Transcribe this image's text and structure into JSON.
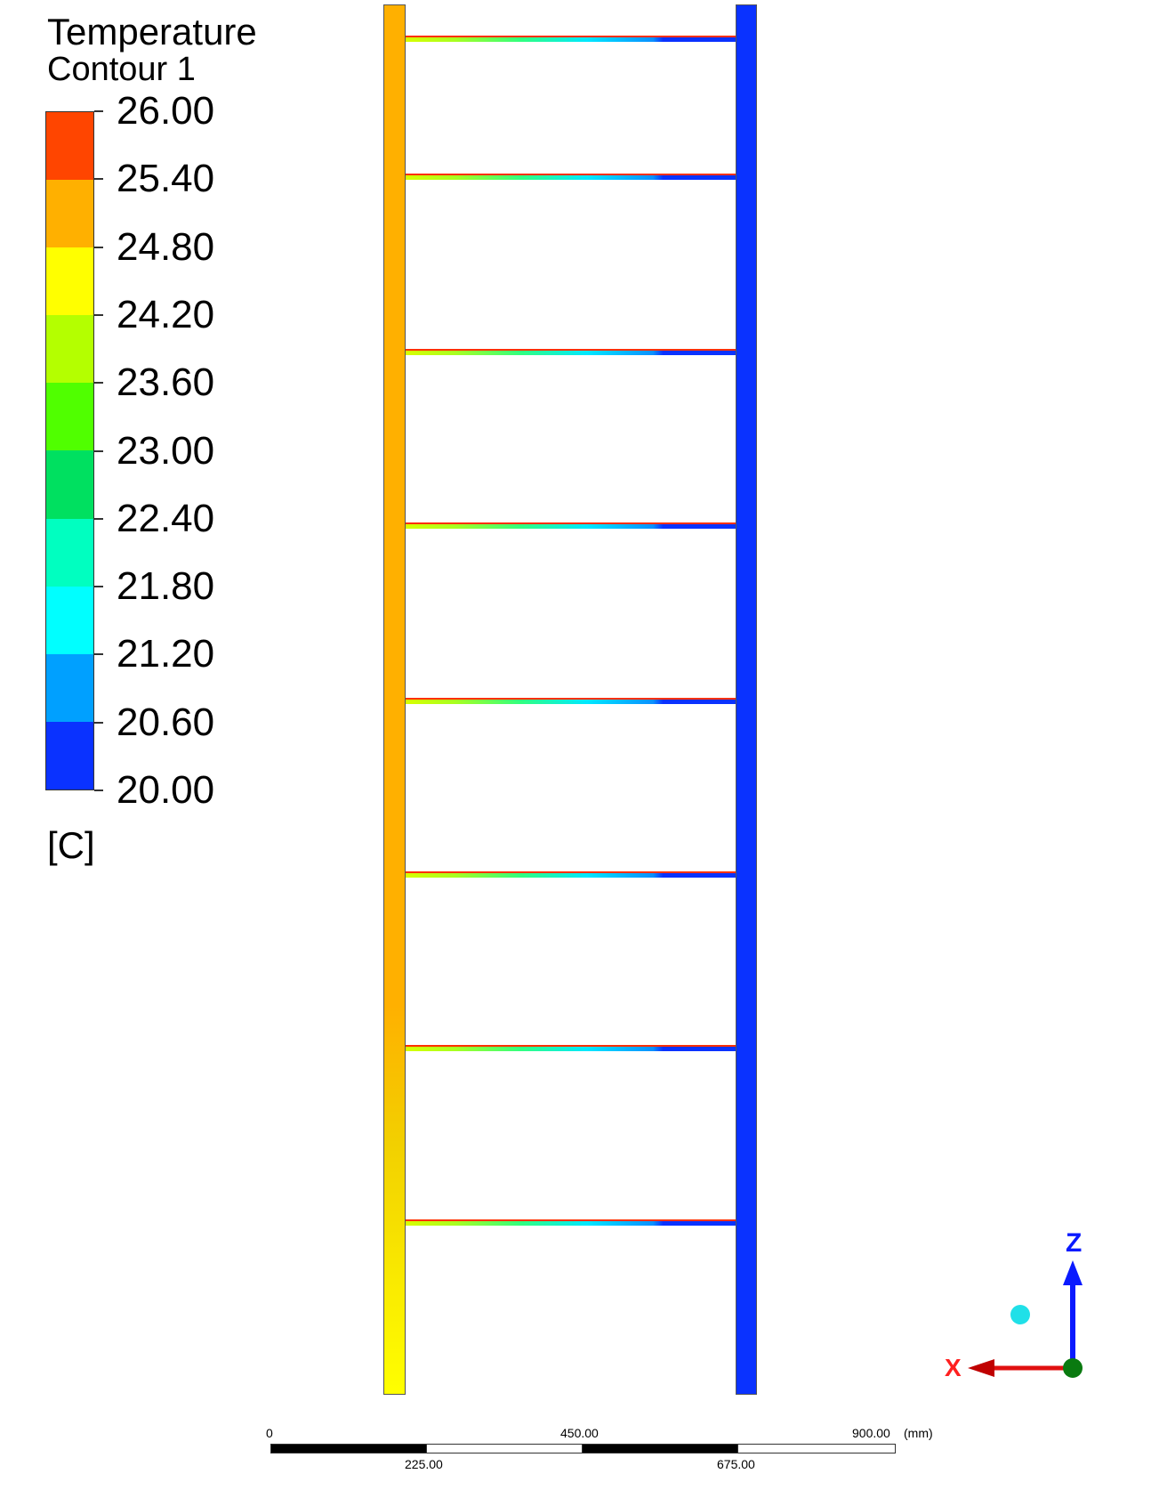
{
  "legend": {
    "title": "Temperature",
    "subtitle": "Contour 1",
    "unit": "[C]",
    "levels": [
      "26.00",
      "25.40",
      "24.80",
      "24.20",
      "23.60",
      "23.00",
      "22.40",
      "21.80",
      "21.20",
      "20.60",
      "20.00"
    ],
    "band_colors": [
      "#ff4500",
      "#ffb000",
      "#ffff00",
      "#b4ff00",
      "#50ff00",
      "#00e060",
      "#00ffc0",
      "#00ffff",
      "#00a0ff",
      "#0a32ff"
    ]
  },
  "scale_bar": {
    "top_labels": [
      "0",
      "450.00",
      "900.00"
    ],
    "bottom_labels": [
      "225.00",
      "675.00"
    ],
    "unit": "(mm)"
  },
  "triad": {
    "z_label": "Z",
    "x_label": "X"
  }
}
